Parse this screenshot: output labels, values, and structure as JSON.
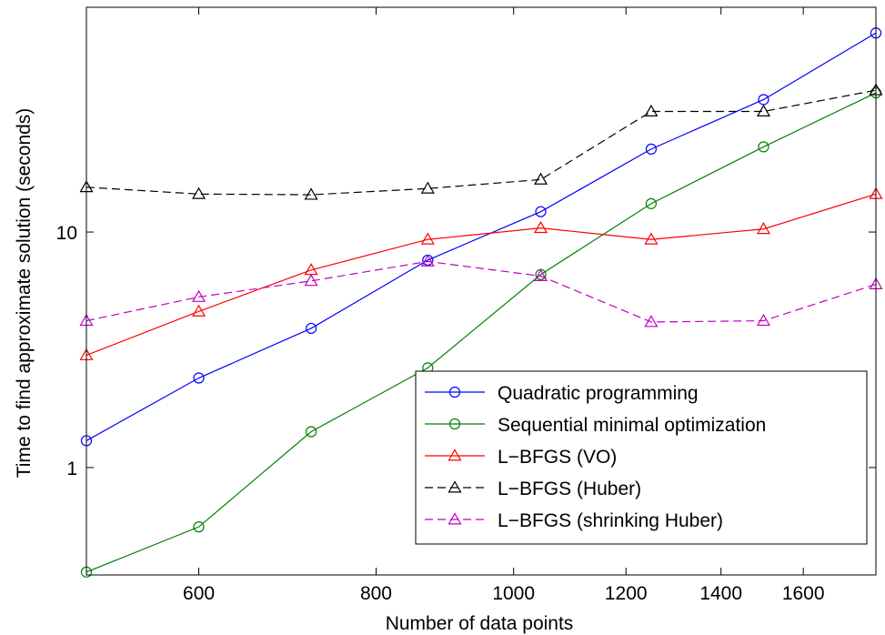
{
  "chart_data": {
    "type": "line",
    "xlabel": "Number of data points",
    "ylabel": "Time to find approximate solution (seconds)",
    "xscale": "log",
    "yscale": "log",
    "xlim": [
      500,
      1800
    ],
    "ylim": [
      0.35,
      90
    ],
    "xticks": [
      600,
      800,
      1000,
      1200,
      1400,
      1600
    ],
    "xtick_labels": [
      "600",
      "800",
      "1000",
      "1200",
      "1400",
      "1600"
    ],
    "yticks": [
      1,
      10
    ],
    "ytick_labels": [
      "1",
      "10"
    ],
    "x": [
      500,
      600,
      720,
      870,
      1045,
      1250,
      1500,
      1800
    ],
    "legend_position": "bottom-right",
    "series": [
      {
        "name": "Quadratic programming",
        "color": "#0000ff",
        "dash": "solid",
        "marker": "circle",
        "values": [
          1.3,
          2.4,
          3.9,
          7.6,
          12.2,
          22.5,
          36.5,
          70
        ]
      },
      {
        "name": "Sequential minimal optimization",
        "color": "#008000",
        "dash": "solid",
        "marker": "circle",
        "values": [
          0.36,
          0.56,
          1.42,
          2.65,
          6.6,
          13.2,
          23,
          39
        ]
      },
      {
        "name": "L−BFGS (VO)",
        "color": "#ff0000",
        "dash": "solid",
        "marker": "triangle",
        "values": [
          3.0,
          4.6,
          6.9,
          9.3,
          10.4,
          9.3,
          10.3,
          14.5
        ]
      },
      {
        "name": "L−BFGS (Huber)",
        "color": "#000000",
        "dash": "dashed",
        "marker": "triangle",
        "values": [
          15.5,
          14.5,
          14.4,
          15.3,
          16.7,
          32.5,
          32.5,
          40
        ]
      },
      {
        "name": "L−BFGS (shrinking Huber)",
        "color": "#bf00bf",
        "dash": "dashed",
        "marker": "triangle",
        "values": [
          4.2,
          5.3,
          6.2,
          7.5,
          6.5,
          4.15,
          4.2,
          6.0
        ]
      }
    ]
  }
}
